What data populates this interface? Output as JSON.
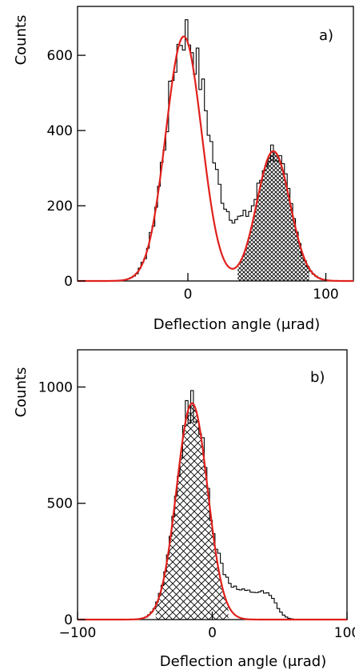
{
  "chart_data": [
    {
      "type": "histogram",
      "panel_label": "a)",
      "xlabel": "Deflection angle (μrad)",
      "ylabel": "Counts",
      "xlim": [
        -80,
        120
      ],
      "ylim": [
        0,
        730
      ],
      "xticks": [
        {
          "value": 0,
          "label": "0"
        },
        {
          "value": 100,
          "label": "100"
        }
      ],
      "yticks": [
        {
          "value": 0,
          "label": "0"
        },
        {
          "value": 200,
          "label": "200"
        },
        {
          "value": 400,
          "label": "400"
        },
        {
          "value": 600,
          "label": "600"
        }
      ],
      "fits": [
        {
          "amplitude": 650,
          "mean": -3,
          "sigma": 13
        },
        {
          "amplitude": 345,
          "mean": 62,
          "sigma": 12,
          "hatch": "crosshatch-dense",
          "hatch_range": [
            36,
            88
          ]
        }
      ],
      "tail": {
        "amplitude": 200,
        "from": 8,
        "to": 45,
        "slope": 0.014,
        "edge_width": 3.5
      },
      "bin_width": 2,
      "noise_seed": 7,
      "noise_level": 0.1
    },
    {
      "type": "histogram",
      "panel_label": "b)",
      "xlabel": "Deflection angle (μrad)",
      "ylabel": "Counts",
      "xlim": [
        -100,
        100
      ],
      "ylim": [
        0,
        1160
      ],
      "xticks": [
        {
          "value": -100,
          "label": "−100"
        },
        {
          "value": 0,
          "label": "0"
        },
        {
          "value": 100,
          "label": "100"
        }
      ],
      "yticks": [
        {
          "value": 0,
          "label": "0"
        },
        {
          "value": 500,
          "label": "500"
        },
        {
          "value": 1000,
          "label": "1000"
        }
      ],
      "fits": [
        {
          "amplitude": 930,
          "mean": -15,
          "sigma": 11.5,
          "hatch": "crosshatch-wide",
          "hatch_range": [
            -42,
            12
          ]
        }
      ],
      "tail": {
        "amplitude": 120,
        "from": 4,
        "to": 48,
        "slope": 0,
        "edge_width": 3
      },
      "bin_width": 2,
      "noise_seed": 13,
      "noise_level": 0.08
    }
  ],
  "colors": {
    "fit": "#e0201c",
    "histogram": "#000000",
    "hatch": "#000000"
  }
}
